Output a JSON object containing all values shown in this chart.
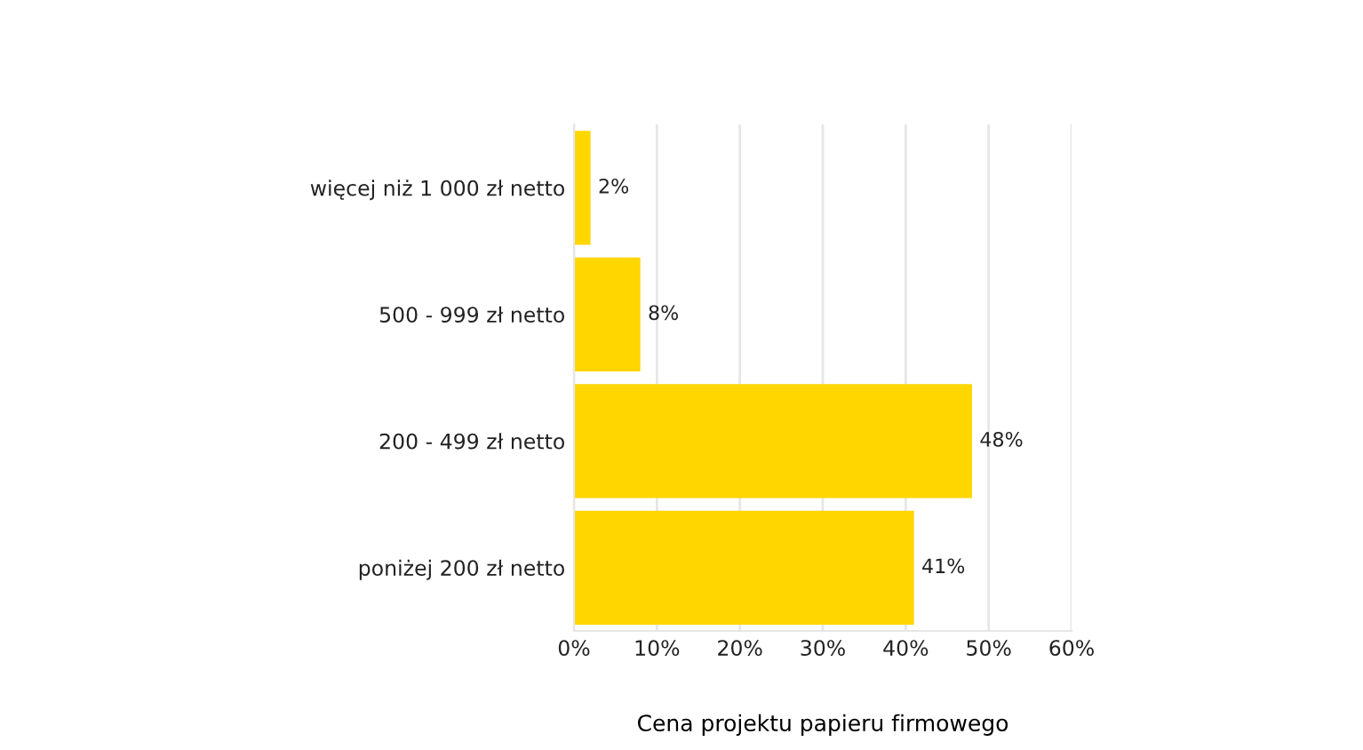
{
  "chart_data": {
    "type": "bar",
    "orientation": "horizontal",
    "xlabel": "Cena projektu papieru firmowego",
    "categories": [
      "więcej niż 1 000 zł netto",
      "500 - 999 zł netto",
      "200 - 499 zł netto",
      "poniżej 200 zł netto"
    ],
    "values": [
      2,
      8,
      48,
      41
    ],
    "value_labels": [
      "2%",
      "8%",
      "48%",
      "41%"
    ],
    "color": "#ffd600",
    "xlim": [
      0,
      60
    ],
    "xticks": [
      {
        "value": 0,
        "label": "0%"
      },
      {
        "value": 10,
        "label": "10%"
      },
      {
        "value": 20,
        "label": "20%"
      },
      {
        "value": 30,
        "label": "30%"
      },
      {
        "value": 40,
        "label": "40%"
      },
      {
        "value": 50,
        "label": "50%"
      },
      {
        "value": 60,
        "label": "60%"
      }
    ],
    "grid": "x",
    "legend": false
  }
}
